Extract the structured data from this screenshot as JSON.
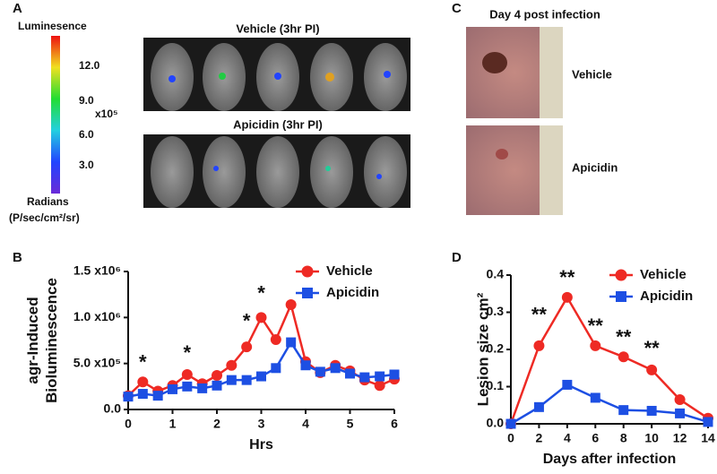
{
  "panels": {
    "a": {
      "letter": "A",
      "colorbar_title": "Luminesence",
      "colorbar_ticks": [
        "12.0",
        "9.0",
        "6.0",
        "3.0"
      ],
      "colorbar_scale": "x10⁵",
      "colorbar_unit": "Radians",
      "colorbar_unit2": "(P/sec/cm²/sr)",
      "image1_title": "Vehicle (3hr PI)",
      "image2_title": "Apicidin (3hr PI)"
    },
    "b": {
      "letter": "B"
    },
    "c": {
      "letter": "C",
      "title": "Day 4 post infection",
      "label1": "Vehicle",
      "label2": "Apicidin"
    },
    "d": {
      "letter": "D"
    }
  },
  "chart_data": [
    {
      "type": "line",
      "y_label": [
        "agr-Induced",
        "Bioluminescence"
      ],
      "x_label": "Hrs",
      "x": [
        0,
        0.33,
        0.67,
        1,
        1.33,
        1.67,
        2,
        2.33,
        2.67,
        3,
        3.33,
        3.67,
        4,
        4.33,
        4.67,
        5,
        5.33,
        5.67,
        6
      ],
      "series": [
        {
          "name": "Vehicle",
          "color": "#ee2a24",
          "marker": "circle",
          "values": [
            150000,
            300000,
            200000,
            260000,
            380000,
            280000,
            370000,
            480000,
            680000,
            1000000,
            760000,
            1140000,
            520000,
            400000,
            480000,
            420000,
            320000,
            260000,
            330000
          ]
        },
        {
          "name": "Apicidin",
          "color": "#1d4fe3",
          "marker": "square",
          "values": [
            140000,
            170000,
            150000,
            220000,
            250000,
            230000,
            260000,
            320000,
            320000,
            360000,
            450000,
            730000,
            480000,
            410000,
            450000,
            390000,
            350000,
            360000,
            380000
          ]
        }
      ],
      "annotations": [
        {
          "text": "*",
          "x": 0.33,
          "y": 500000
        },
        {
          "text": "*",
          "x": 1.33,
          "y": 600000
        },
        {
          "text": "*",
          "x": 2.67,
          "y": 950000
        },
        {
          "text": "*",
          "x": 3,
          "y": 1250000
        }
      ],
      "xlim": [
        0,
        6
      ],
      "xticks": [
        0,
        1,
        2,
        3,
        4,
        5,
        6
      ],
      "ylim": [
        0,
        1500000
      ],
      "yticks": [
        {
          "value": 0,
          "label": "0.0"
        },
        {
          "value": 500000,
          "label": "5.0 x10⁵"
        },
        {
          "value": 1000000,
          "label": "1.0 x10⁶"
        },
        {
          "value": 1500000,
          "label": "1.5 x10⁶"
        }
      ],
      "legend": "upper right"
    },
    {
      "type": "line",
      "y_label": [
        "Lesion size cm²"
      ],
      "x_label": "Days after infection",
      "x": [
        0,
        2,
        4,
        6,
        8,
        10,
        12,
        14
      ],
      "series": [
        {
          "name": "Vehicle",
          "color": "#ee2a24",
          "marker": "circle",
          "values": [
            0,
            0.21,
            0.34,
            0.21,
            0.18,
            0.145,
            0.065,
            0.015
          ]
        },
        {
          "name": "Apicidin",
          "color": "#1d4fe3",
          "marker": "square",
          "values": [
            0,
            0.045,
            0.105,
            0.07,
            0.037,
            0.035,
            0.028,
            0.005
          ]
        }
      ],
      "annotations": [
        {
          "text": "**",
          "x": 2,
          "y": 0.29
        },
        {
          "text": "**",
          "x": 4,
          "y": 0.39
        },
        {
          "text": "**",
          "x": 6,
          "y": 0.26
        },
        {
          "text": "**",
          "x": 8,
          "y": 0.23
        },
        {
          "text": "**",
          "x": 10,
          "y": 0.2
        }
      ],
      "xlim": [
        0,
        14
      ],
      "xticks": [
        0,
        2,
        4,
        6,
        8,
        10,
        12,
        14
      ],
      "ylim": [
        0,
        0.4
      ],
      "yticks": [
        {
          "value": 0,
          "label": "0.0"
        },
        0.1,
        0.2,
        0.3,
        0.4
      ],
      "legend": "upper right"
    }
  ]
}
